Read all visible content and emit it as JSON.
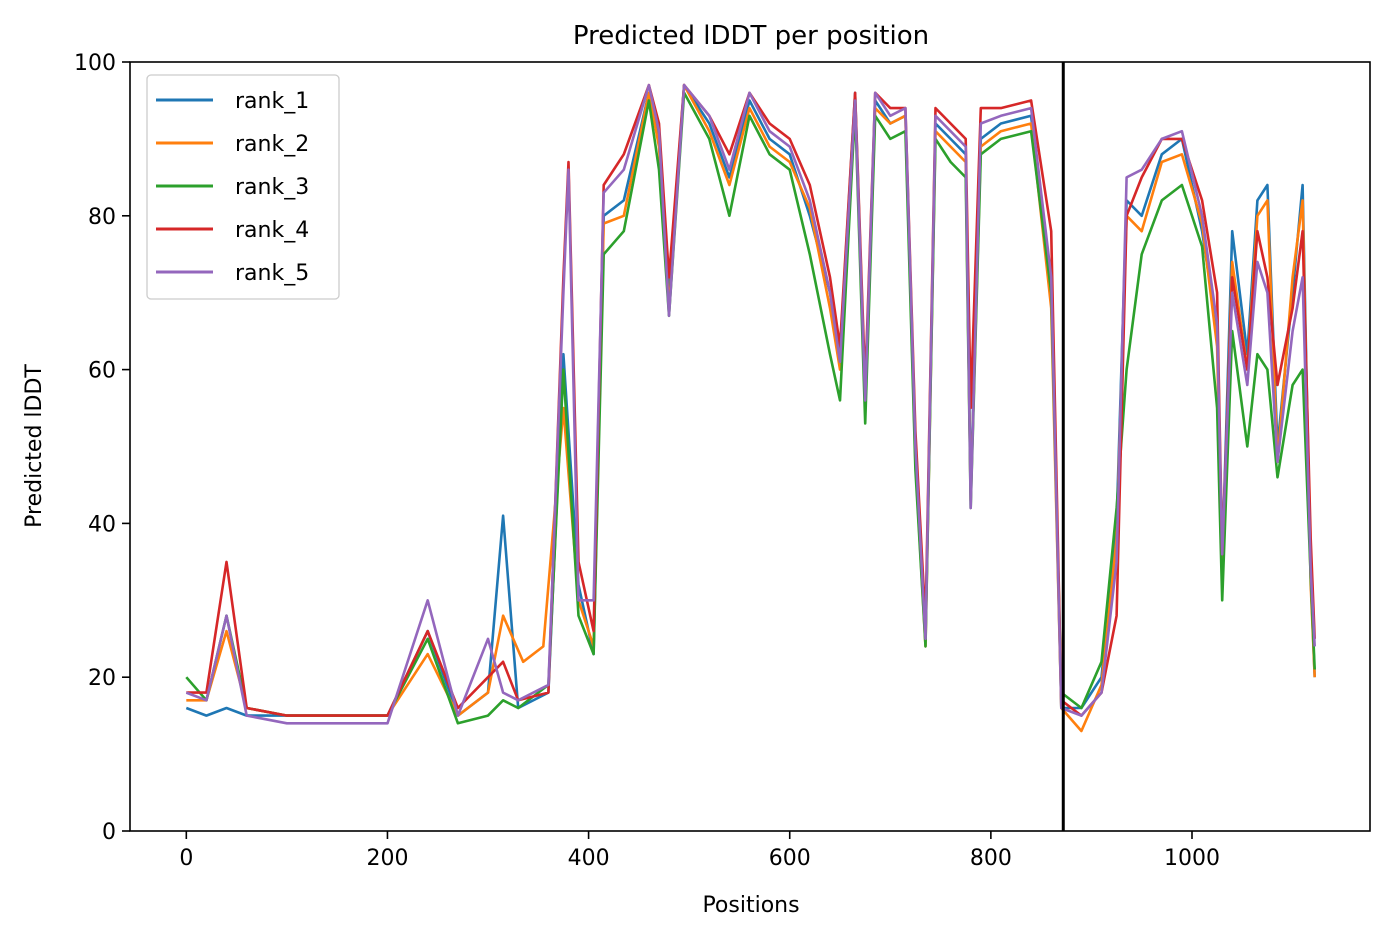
{
  "chart_data": {
    "type": "line",
    "title": "Predicted lDDT per position",
    "xlabel": "Positions",
    "ylabel": "Predicted lDDT",
    "xlim": [
      -56,
      1177
    ],
    "ylim": [
      0,
      100
    ],
    "xticks": [
      0,
      200,
      400,
      600,
      800,
      1000
    ],
    "yticks": [
      0,
      20,
      40,
      60,
      80,
      100
    ],
    "vline": {
      "x": 872,
      "color": "#000000"
    },
    "legend_position": "upper-left",
    "grid": false,
    "series": [
      {
        "name": "rank_1",
        "color": "#1f77b4",
        "points": [
          [
            0,
            16
          ],
          [
            20,
            15
          ],
          [
            40,
            16
          ],
          [
            60,
            15
          ],
          [
            100,
            15
          ],
          [
            200,
            15
          ],
          [
            240,
            26
          ],
          [
            270,
            15
          ],
          [
            300,
            18
          ],
          [
            315,
            41
          ],
          [
            330,
            16
          ],
          [
            360,
            18
          ],
          [
            375,
            62
          ],
          [
            390,
            32
          ],
          [
            405,
            23
          ],
          [
            415,
            80
          ],
          [
            435,
            82
          ],
          [
            460,
            96
          ],
          [
            470,
            90
          ],
          [
            480,
            70
          ],
          [
            495,
            97
          ],
          [
            520,
            92
          ],
          [
            540,
            85
          ],
          [
            560,
            95
          ],
          [
            580,
            90
          ],
          [
            600,
            88
          ],
          [
            620,
            80
          ],
          [
            640,
            70
          ],
          [
            650,
            62
          ],
          [
            665,
            96
          ],
          [
            675,
            56
          ],
          [
            685,
            95
          ],
          [
            700,
            92
          ],
          [
            715,
            93
          ],
          [
            725,
            50
          ],
          [
            735,
            25
          ],
          [
            745,
            92
          ],
          [
            760,
            90
          ],
          [
            775,
            88
          ],
          [
            780,
            44
          ],
          [
            790,
            90
          ],
          [
            810,
            92
          ],
          [
            840,
            93
          ],
          [
            860,
            70
          ],
          [
            870,
            16
          ],
          [
            890,
            16
          ],
          [
            910,
            20
          ],
          [
            925,
            40
          ],
          [
            935,
            82
          ],
          [
            950,
            80
          ],
          [
            970,
            88
          ],
          [
            990,
            90
          ],
          [
            1010,
            78
          ],
          [
            1025,
            65
          ],
          [
            1030,
            35
          ],
          [
            1040,
            78
          ],
          [
            1055,
            62
          ],
          [
            1065,
            82
          ],
          [
            1075,
            84
          ],
          [
            1085,
            50
          ],
          [
            1100,
            70
          ],
          [
            1110,
            84
          ],
          [
            1118,
            33
          ],
          [
            1122,
            20
          ]
        ]
      },
      {
        "name": "rank_2",
        "color": "#ff7f0e",
        "points": [
          [
            0,
            17
          ],
          [
            20,
            17
          ],
          [
            40,
            26
          ],
          [
            60,
            16
          ],
          [
            100,
            15
          ],
          [
            200,
            15
          ],
          [
            240,
            23
          ],
          [
            270,
            15
          ],
          [
            300,
            18
          ],
          [
            315,
            28
          ],
          [
            335,
            22
          ],
          [
            355,
            24
          ],
          [
            375,
            55
          ],
          [
            390,
            30
          ],
          [
            405,
            24
          ],
          [
            415,
            79
          ],
          [
            435,
            80
          ],
          [
            460,
            96
          ],
          [
            470,
            89
          ],
          [
            480,
            68
          ],
          [
            495,
            97
          ],
          [
            520,
            91
          ],
          [
            540,
            84
          ],
          [
            560,
            94
          ],
          [
            580,
            89
          ],
          [
            600,
            87
          ],
          [
            620,
            81
          ],
          [
            640,
            68
          ],
          [
            650,
            60
          ],
          [
            665,
            95
          ],
          [
            675,
            55
          ],
          [
            685,
            94
          ],
          [
            700,
            92
          ],
          [
            715,
            93
          ],
          [
            725,
            48
          ],
          [
            735,
            24
          ],
          [
            745,
            91
          ],
          [
            760,
            89
          ],
          [
            775,
            87
          ],
          [
            780,
            43
          ],
          [
            790,
            89
          ],
          [
            810,
            91
          ],
          [
            840,
            92
          ],
          [
            860,
            68
          ],
          [
            870,
            16
          ],
          [
            890,
            13
          ],
          [
            910,
            19
          ],
          [
            925,
            38
          ],
          [
            935,
            80
          ],
          [
            950,
            78
          ],
          [
            970,
            87
          ],
          [
            990,
            88
          ],
          [
            1010,
            79
          ],
          [
            1025,
            63
          ],
          [
            1030,
            34
          ],
          [
            1040,
            74
          ],
          [
            1055,
            60
          ],
          [
            1065,
            80
          ],
          [
            1075,
            82
          ],
          [
            1085,
            48
          ],
          [
            1100,
            72
          ],
          [
            1110,
            82
          ],
          [
            1118,
            32
          ],
          [
            1122,
            20
          ]
        ]
      },
      {
        "name": "rank_3",
        "color": "#2ca02c",
        "points": [
          [
            0,
            20
          ],
          [
            20,
            17
          ],
          [
            40,
            28
          ],
          [
            60,
            16
          ],
          [
            100,
            15
          ],
          [
            200,
            15
          ],
          [
            240,
            25
          ],
          [
            270,
            14
          ],
          [
            300,
            15
          ],
          [
            315,
            17
          ],
          [
            330,
            16
          ],
          [
            360,
            19
          ],
          [
            375,
            60
          ],
          [
            390,
            28
          ],
          [
            405,
            23
          ],
          [
            415,
            75
          ],
          [
            435,
            78
          ],
          [
            460,
            95
          ],
          [
            470,
            86
          ],
          [
            480,
            67
          ],
          [
            495,
            96
          ],
          [
            520,
            90
          ],
          [
            540,
            80
          ],
          [
            560,
            93
          ],
          [
            580,
            88
          ],
          [
            600,
            86
          ],
          [
            620,
            75
          ],
          [
            640,
            62
          ],
          [
            650,
            56
          ],
          [
            665,
            94
          ],
          [
            675,
            53
          ],
          [
            685,
            93
          ],
          [
            700,
            90
          ],
          [
            715,
            91
          ],
          [
            725,
            47
          ],
          [
            735,
            24
          ],
          [
            745,
            90
          ],
          [
            760,
            87
          ],
          [
            775,
            85
          ],
          [
            780,
            42
          ],
          [
            790,
            88
          ],
          [
            810,
            90
          ],
          [
            840,
            91
          ],
          [
            860,
            70
          ],
          [
            870,
            18
          ],
          [
            890,
            16
          ],
          [
            910,
            22
          ],
          [
            925,
            42
          ],
          [
            935,
            60
          ],
          [
            950,
            75
          ],
          [
            970,
            82
          ],
          [
            990,
            84
          ],
          [
            1010,
            76
          ],
          [
            1025,
            55
          ],
          [
            1030,
            30
          ],
          [
            1040,
            65
          ],
          [
            1055,
            50
          ],
          [
            1065,
            62
          ],
          [
            1075,
            60
          ],
          [
            1085,
            46
          ],
          [
            1100,
            58
          ],
          [
            1110,
            60
          ],
          [
            1118,
            33
          ],
          [
            1122,
            21
          ]
        ]
      },
      {
        "name": "rank_4",
        "color": "#d62728",
        "points": [
          [
            0,
            18
          ],
          [
            20,
            18
          ],
          [
            40,
            35
          ],
          [
            60,
            16
          ],
          [
            100,
            15
          ],
          [
            200,
            15
          ],
          [
            240,
            26
          ],
          [
            270,
            16
          ],
          [
            300,
            20
          ],
          [
            315,
            22
          ],
          [
            330,
            17
          ],
          [
            360,
            18
          ],
          [
            375,
            72
          ],
          [
            380,
            87
          ],
          [
            390,
            35
          ],
          [
            405,
            26
          ],
          [
            415,
            84
          ],
          [
            435,
            88
          ],
          [
            460,
            97
          ],
          [
            470,
            92
          ],
          [
            480,
            72
          ],
          [
            495,
            97
          ],
          [
            520,
            93
          ],
          [
            540,
            88
          ],
          [
            560,
            96
          ],
          [
            580,
            92
          ],
          [
            600,
            90
          ],
          [
            620,
            84
          ],
          [
            640,
            72
          ],
          [
            650,
            63
          ],
          [
            665,
            96
          ],
          [
            675,
            58
          ],
          [
            685,
            96
          ],
          [
            700,
            94
          ],
          [
            715,
            94
          ],
          [
            725,
            52
          ],
          [
            735,
            27
          ],
          [
            745,
            94
          ],
          [
            760,
            92
          ],
          [
            775,
            90
          ],
          [
            780,
            55
          ],
          [
            790,
            94
          ],
          [
            810,
            94
          ],
          [
            840,
            95
          ],
          [
            860,
            78
          ],
          [
            870,
            17
          ],
          [
            890,
            15
          ],
          [
            910,
            18
          ],
          [
            925,
            28
          ],
          [
            935,
            80
          ],
          [
            950,
            85
          ],
          [
            970,
            90
          ],
          [
            990,
            90
          ],
          [
            1010,
            82
          ],
          [
            1025,
            70
          ],
          [
            1030,
            36
          ],
          [
            1040,
            72
          ],
          [
            1055,
            60
          ],
          [
            1065,
            78
          ],
          [
            1075,
            72
          ],
          [
            1085,
            58
          ],
          [
            1100,
            68
          ],
          [
            1110,
            78
          ],
          [
            1118,
            38
          ],
          [
            1122,
            25
          ]
        ]
      },
      {
        "name": "rank_5",
        "color": "#9467bd",
        "points": [
          [
            0,
            18
          ],
          [
            20,
            17
          ],
          [
            40,
            28
          ],
          [
            60,
            15
          ],
          [
            100,
            14
          ],
          [
            200,
            14
          ],
          [
            240,
            30
          ],
          [
            270,
            15
          ],
          [
            300,
            25
          ],
          [
            315,
            18
          ],
          [
            330,
            17
          ],
          [
            360,
            19
          ],
          [
            375,
            70
          ],
          [
            380,
            86
          ],
          [
            390,
            30
          ],
          [
            405,
            30
          ],
          [
            415,
            83
          ],
          [
            435,
            86
          ],
          [
            460,
            97
          ],
          [
            470,
            91
          ],
          [
            480,
            67
          ],
          [
            495,
            97
          ],
          [
            520,
            93
          ],
          [
            540,
            86
          ],
          [
            560,
            96
          ],
          [
            580,
            91
          ],
          [
            600,
            89
          ],
          [
            620,
            82
          ],
          [
            640,
            70
          ],
          [
            650,
            61
          ],
          [
            665,
            95
          ],
          [
            675,
            56
          ],
          [
            685,
            96
          ],
          [
            700,
            93
          ],
          [
            715,
            94
          ],
          [
            725,
            50
          ],
          [
            735,
            25
          ],
          [
            745,
            93
          ],
          [
            760,
            91
          ],
          [
            775,
            89
          ],
          [
            780,
            42
          ],
          [
            790,
            92
          ],
          [
            810,
            93
          ],
          [
            840,
            94
          ],
          [
            860,
            72
          ],
          [
            870,
            16
          ],
          [
            890,
            15
          ],
          [
            910,
            18
          ],
          [
            925,
            35
          ],
          [
            935,
            85
          ],
          [
            950,
            86
          ],
          [
            970,
            90
          ],
          [
            990,
            91
          ],
          [
            1010,
            80
          ],
          [
            1025,
            66
          ],
          [
            1030,
            36
          ],
          [
            1040,
            70
          ],
          [
            1055,
            58
          ],
          [
            1065,
            74
          ],
          [
            1075,
            70
          ],
          [
            1085,
            48
          ],
          [
            1100,
            65
          ],
          [
            1110,
            72
          ],
          [
            1118,
            34
          ],
          [
            1122,
            24
          ]
        ]
      }
    ]
  }
}
